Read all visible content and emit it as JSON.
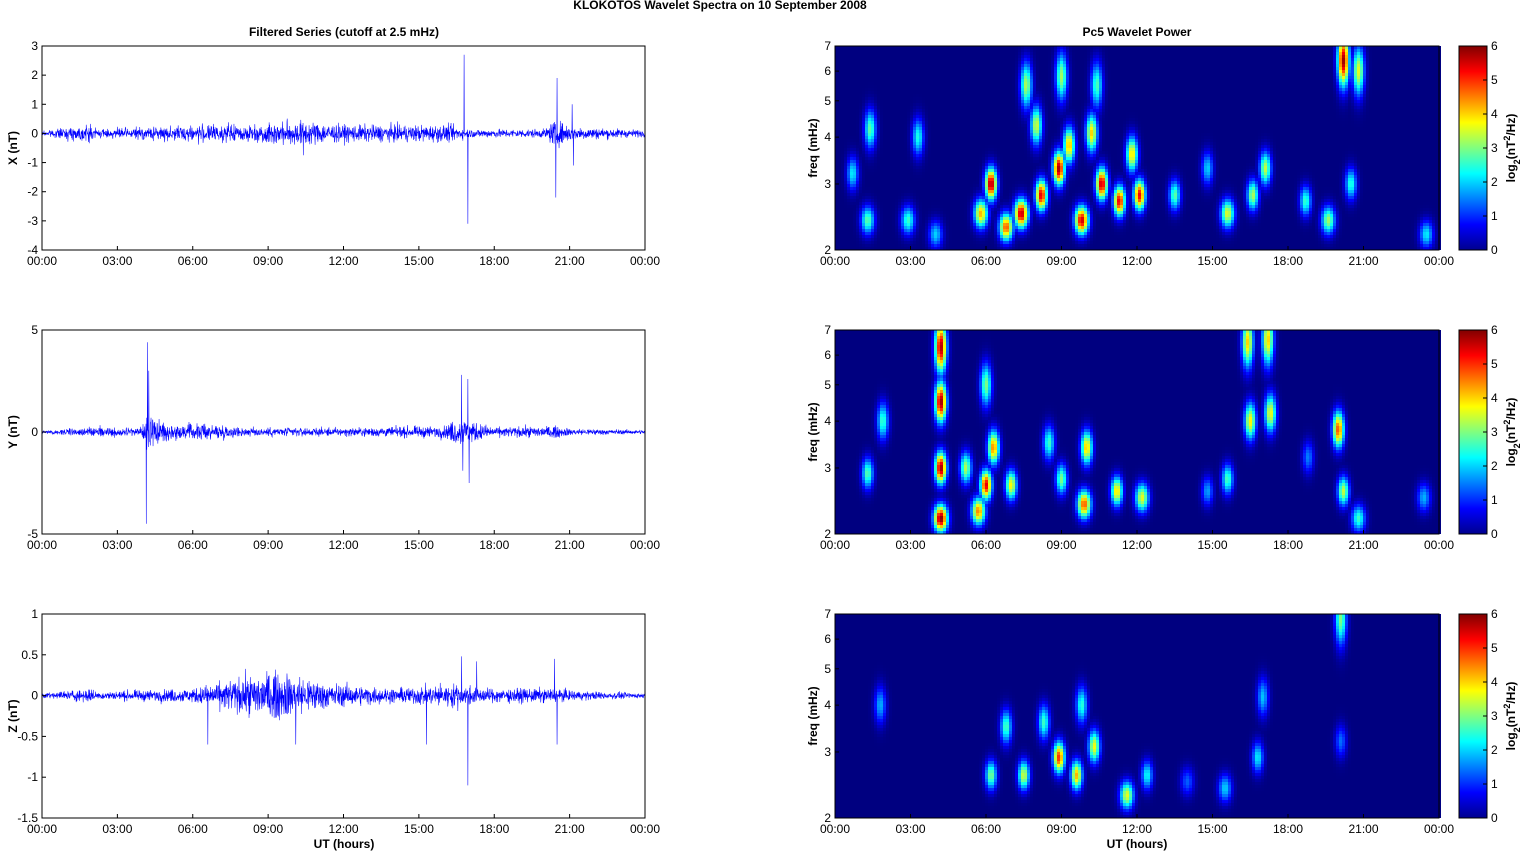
{
  "figure": {
    "suptitle": "KLOKOTOS Wavelet Spectra on 10 September 2008",
    "left_title": "Filtered Series (cutoff at 2.5 mHz)",
    "right_title": "Pc5 Wavelet Power",
    "x_axis_label": "UT (hours)",
    "freq_label": "freq (mHz)",
    "colorbar_label": "log2(nT2/Hz)"
  },
  "chart_data": [
    {
      "type": "line",
      "panel": "filtered-x",
      "ylabel": "X (nT)",
      "xlim": [
        0,
        24
      ],
      "ylim": [
        -4,
        3
      ],
      "x_ticks": [
        "00:00",
        "03:00",
        "06:00",
        "09:00",
        "12:00",
        "15:00",
        "18:00",
        "21:00",
        "00:00"
      ],
      "y_ticks": [
        "3",
        "2",
        "1",
        "0",
        "-1",
        "-2",
        "-3",
        "-4"
      ],
      "line_color": "#0000ff",
      "envelope": [
        [
          0,
          0.15
        ],
        [
          1.9,
          0.5
        ],
        [
          2.3,
          0.25
        ],
        [
          6.2,
          0.5
        ],
        [
          8,
          0.5
        ],
        [
          10.3,
          0.75
        ],
        [
          12,
          0.5
        ],
        [
          16.3,
          0.5
        ],
        [
          17,
          0.25
        ],
        [
          20,
          0.25
        ],
        [
          20.4,
          0.8
        ],
        [
          21.2,
          0.4
        ],
        [
          24,
          0.2
        ]
      ],
      "spikes": [
        [
          16.8,
          2.7
        ],
        [
          16.95,
          -3.1
        ],
        [
          20.5,
          1.9
        ],
        [
          20.45,
          -2.2
        ],
        [
          21.1,
          1.0
        ],
        [
          21.15,
          -1.1
        ],
        [
          10.4,
          -0.75
        ]
      ]
    },
    {
      "type": "line",
      "panel": "filtered-y",
      "ylabel": "Y (nT)",
      "xlim": [
        0,
        24
      ],
      "ylim": [
        -5,
        5
      ],
      "x_ticks": [
        "00:00",
        "03:00",
        "06:00",
        "09:00",
        "12:00",
        "15:00",
        "18:00",
        "21:00",
        "00:00"
      ],
      "y_ticks": [
        "5",
        "0",
        "-5"
      ],
      "line_color": "#0000ff",
      "envelope": [
        [
          0,
          0.15
        ],
        [
          2,
          0.4
        ],
        [
          3.9,
          0.4
        ],
        [
          4.2,
          1.5
        ],
        [
          5,
          0.6
        ],
        [
          6.5,
          0.7
        ],
        [
          8,
          0.4
        ],
        [
          12,
          0.35
        ],
        [
          16,
          0.5
        ],
        [
          16.6,
          1.2
        ],
        [
          18,
          0.4
        ],
        [
          20.4,
          0.5
        ],
        [
          21,
          0.3
        ],
        [
          24,
          0.15
        ]
      ],
      "spikes": [
        [
          4.2,
          4.4
        ],
        [
          4.15,
          -4.5
        ],
        [
          4.25,
          3.0
        ],
        [
          16.7,
          2.8
        ],
        [
          16.95,
          2.6
        ],
        [
          16.75,
          -1.9
        ],
        [
          17.0,
          -2.5
        ]
      ]
    },
    {
      "type": "line",
      "panel": "filtered-z",
      "ylabel": "Z (nT)",
      "xlim": [
        0,
        24
      ],
      "ylim": [
        -1.5,
        1
      ],
      "x_ticks": [
        "00:00",
        "03:00",
        "06:00",
        "09:00",
        "12:00",
        "15:00",
        "18:00",
        "21:00",
        "00:00"
      ],
      "y_ticks": [
        "1",
        "0.5",
        "0",
        "-0.5",
        "-1",
        "-1.5"
      ],
      "line_color": "#0000ff",
      "envelope": [
        [
          0,
          0.05
        ],
        [
          1.9,
          0.15
        ],
        [
          2.2,
          0.08
        ],
        [
          6,
          0.15
        ],
        [
          7.7,
          0.35
        ],
        [
          9,
          0.5
        ],
        [
          10,
          0.45
        ],
        [
          11.5,
          0.25
        ],
        [
          14,
          0.15
        ],
        [
          16.5,
          0.25
        ],
        [
          17.5,
          0.15
        ],
        [
          20.3,
          0.15
        ],
        [
          21.3,
          0.1
        ],
        [
          24,
          0.05
        ]
      ],
      "spikes": [
        [
          16.7,
          0.48
        ],
        [
          16.95,
          -1.1
        ],
        [
          17.3,
          0.42
        ],
        [
          20.4,
          0.45
        ],
        [
          20.5,
          -0.6
        ],
        [
          15.3,
          -0.6
        ],
        [
          6.6,
          -0.6
        ],
        [
          10.1,
          -0.6
        ]
      ]
    },
    {
      "type": "heatmap",
      "panel": "wavelet-x",
      "ylabel": "freq (mHz)",
      "xlim": [
        0,
        24
      ],
      "ylim": [
        2,
        7
      ],
      "y_scale": "log",
      "x_ticks": [
        "00:00",
        "03:00",
        "06:00",
        "09:00",
        "12:00",
        "15:00",
        "18:00",
        "21:00",
        "00:00"
      ],
      "y_ticks": [
        "7",
        "6",
        "5",
        "4",
        "3",
        "2"
      ],
      "colorbar": {
        "min": 0,
        "max": 6,
        "ticks": [
          "6",
          "5",
          "4",
          "3",
          "2",
          "1",
          "0"
        ],
        "colormap": "jet"
      },
      "blobs": [
        {
          "t": 6.2,
          "f": 3.0,
          "p": 5.9
        },
        {
          "t": 7.4,
          "f": 2.5,
          "p": 5.7
        },
        {
          "t": 8.2,
          "f": 2.8,
          "p": 5.5
        },
        {
          "t": 8.9,
          "f": 3.3,
          "p": 5.8
        },
        {
          "t": 9.8,
          "f": 2.4,
          "p": 5.6
        },
        {
          "t": 10.6,
          "f": 3.0,
          "p": 5.7
        },
        {
          "t": 11.3,
          "f": 2.7,
          "p": 5.4
        },
        {
          "t": 12.1,
          "f": 2.8,
          "p": 5.3
        },
        {
          "t": 6.8,
          "f": 2.3,
          "p": 4.8
        },
        {
          "t": 5.8,
          "f": 2.5,
          "p": 4.2
        },
        {
          "t": 9.3,
          "f": 3.8,
          "p": 4.2
        },
        {
          "t": 10.2,
          "f": 4.1,
          "p": 4.0
        },
        {
          "t": 11.8,
          "f": 3.6,
          "p": 4.0
        },
        {
          "t": 8.0,
          "f": 4.3,
          "p": 3.5
        },
        {
          "t": 13.5,
          "f": 2.8,
          "p": 2.8
        },
        {
          "t": 1.3,
          "f": 2.4,
          "p": 2.8
        },
        {
          "t": 1.4,
          "f": 4.2,
          "p": 2.8
        },
        {
          "t": 2.9,
          "f": 2.4,
          "p": 2.6
        },
        {
          "t": 3.3,
          "f": 4.0,
          "p": 2.4
        },
        {
          "t": 4.0,
          "f": 2.2,
          "p": 2.0
        },
        {
          "t": 0.7,
          "f": 3.2,
          "p": 2.2
        },
        {
          "t": 15.6,
          "f": 2.5,
          "p": 3.6
        },
        {
          "t": 16.6,
          "f": 2.8,
          "p": 3.3
        },
        {
          "t": 17.1,
          "f": 3.3,
          "p": 3.4
        },
        {
          "t": 18.7,
          "f": 2.7,
          "p": 2.6
        },
        {
          "t": 19.6,
          "f": 2.4,
          "p": 3.2
        },
        {
          "t": 20.2,
          "f": 6.4,
          "p": 5.8
        },
        {
          "t": 20.8,
          "f": 6.0,
          "p": 3.6
        },
        {
          "t": 20.5,
          "f": 3.0,
          "p": 2.5
        },
        {
          "t": 23.5,
          "f": 2.2,
          "p": 2.2
        },
        {
          "t": 14.8,
          "f": 3.3,
          "p": 2.0
        },
        {
          "t": 7.6,
          "f": 5.5,
          "p": 3.3
        },
        {
          "t": 9.0,
          "f": 5.8,
          "p": 3.2
        },
        {
          "t": 10.4,
          "f": 5.5,
          "p": 2.7
        }
      ]
    },
    {
      "type": "heatmap",
      "panel": "wavelet-y",
      "ylabel": "freq (mHz)",
      "xlim": [
        0,
        24
      ],
      "ylim": [
        2,
        7
      ],
      "y_scale": "log",
      "x_ticks": [
        "00:00",
        "03:00",
        "06:00",
        "09:00",
        "12:00",
        "15:00",
        "18:00",
        "21:00",
        "00:00"
      ],
      "y_ticks": [
        "7",
        "6",
        "5",
        "4",
        "3",
        "2"
      ],
      "colorbar": {
        "min": 0,
        "max": 6,
        "ticks": [
          "6",
          "5",
          "4",
          "3",
          "2",
          "1",
          "0"
        ],
        "colormap": "jet"
      },
      "blobs": [
        {
          "t": 4.2,
          "f": 2.2,
          "p": 6.0
        },
        {
          "t": 4.2,
          "f": 3.0,
          "p": 5.9
        },
        {
          "t": 4.2,
          "f": 4.5,
          "p": 5.9
        },
        {
          "t": 4.2,
          "f": 6.3,
          "p": 5.8
        },
        {
          "t": 6.0,
          "f": 2.7,
          "p": 5.4
        },
        {
          "t": 5.7,
          "f": 2.3,
          "p": 4.5
        },
        {
          "t": 6.3,
          "f": 3.4,
          "p": 4.5
        },
        {
          "t": 7.0,
          "f": 2.7,
          "p": 3.8
        },
        {
          "t": 5.2,
          "f": 3.0,
          "p": 3.3
        },
        {
          "t": 6.0,
          "f": 5.0,
          "p": 3.0
        },
        {
          "t": 9.9,
          "f": 2.4,
          "p": 4.8
        },
        {
          "t": 10.0,
          "f": 3.4,
          "p": 4.1
        },
        {
          "t": 11.2,
          "f": 2.6,
          "p": 4.0
        },
        {
          "t": 12.2,
          "f": 2.5,
          "p": 3.6
        },
        {
          "t": 9.0,
          "f": 2.8,
          "p": 3.0
        },
        {
          "t": 8.5,
          "f": 3.5,
          "p": 2.6
        },
        {
          "t": 1.3,
          "f": 2.9,
          "p": 2.8
        },
        {
          "t": 1.9,
          "f": 4.0,
          "p": 2.6
        },
        {
          "t": 16.5,
          "f": 4.0,
          "p": 3.8
        },
        {
          "t": 16.4,
          "f": 6.5,
          "p": 4.0
        },
        {
          "t": 17.3,
          "f": 4.2,
          "p": 3.7
        },
        {
          "t": 17.2,
          "f": 6.6,
          "p": 4.0
        },
        {
          "t": 15.6,
          "f": 2.8,
          "p": 2.7
        },
        {
          "t": 20.0,
          "f": 3.8,
          "p": 4.8
        },
        {
          "t": 20.2,
          "f": 2.6,
          "p": 3.4
        },
        {
          "t": 20.8,
          "f": 2.2,
          "p": 2.6
        },
        {
          "t": 23.4,
          "f": 2.5,
          "p": 1.8
        },
        {
          "t": 14.8,
          "f": 2.6,
          "p": 1.7
        },
        {
          "t": 18.8,
          "f": 3.2,
          "p": 1.5
        }
      ]
    },
    {
      "type": "heatmap",
      "panel": "wavelet-z",
      "ylabel": "freq (mHz)",
      "xlim": [
        0,
        24
      ],
      "ylim": [
        2,
        7
      ],
      "y_scale": "log",
      "x_ticks": [
        "00:00",
        "03:00",
        "06:00",
        "09:00",
        "12:00",
        "15:00",
        "18:00",
        "21:00",
        "00:00"
      ],
      "y_ticks": [
        "7",
        "6",
        "5",
        "4",
        "3",
        "2"
      ],
      "colorbar": {
        "min": 0,
        "max": 6,
        "ticks": [
          "6",
          "5",
          "4",
          "3",
          "2",
          "1",
          "0"
        ],
        "colormap": "jet"
      },
      "blobs": [
        {
          "t": 8.9,
          "f": 2.9,
          "p": 5.0
        },
        {
          "t": 9.6,
          "f": 2.6,
          "p": 4.2
        },
        {
          "t": 7.5,
          "f": 2.6,
          "p": 3.5
        },
        {
          "t": 10.3,
          "f": 3.1,
          "p": 3.7
        },
        {
          "t": 11.6,
          "f": 2.3,
          "p": 3.6
        },
        {
          "t": 6.2,
          "f": 2.6,
          "p": 3.0
        },
        {
          "t": 6.8,
          "f": 3.5,
          "p": 2.7
        },
        {
          "t": 8.3,
          "f": 3.6,
          "p": 2.6
        },
        {
          "t": 9.8,
          "f": 4.0,
          "p": 2.5
        },
        {
          "t": 12.4,
          "f": 2.6,
          "p": 2.3
        },
        {
          "t": 1.8,
          "f": 4.0,
          "p": 1.8
        },
        {
          "t": 15.5,
          "f": 2.4,
          "p": 2.0
        },
        {
          "t": 16.8,
          "f": 2.9,
          "p": 2.2
        },
        {
          "t": 17.0,
          "f": 4.2,
          "p": 1.9
        },
        {
          "t": 20.1,
          "f": 6.8,
          "p": 3.0
        },
        {
          "t": 20.1,
          "f": 3.2,
          "p": 1.4
        },
        {
          "t": 14.0,
          "f": 2.5,
          "p": 1.3
        }
      ]
    }
  ]
}
